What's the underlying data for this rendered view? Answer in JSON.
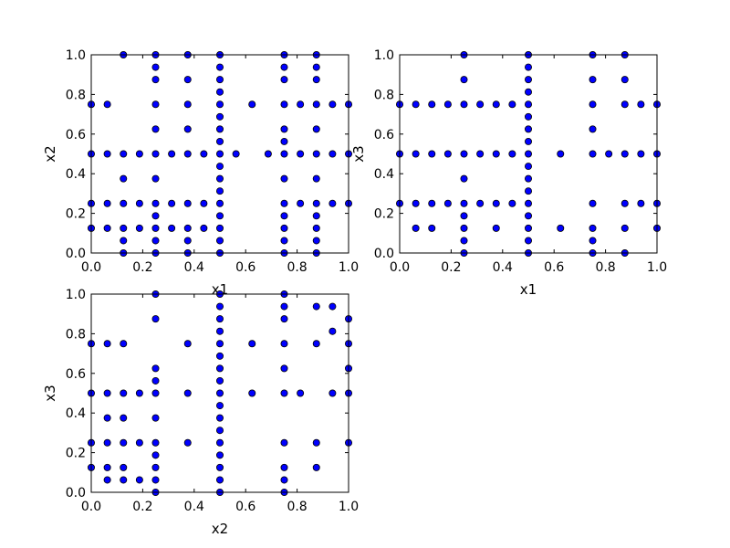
{
  "chart_data": [
    {
      "type": "scatter",
      "xlabel": "x1",
      "ylabel": "x2",
      "color": "#0000ff",
      "xlim": [
        0,
        1
      ],
      "ylim": [
        0,
        1
      ],
      "xticks": [
        {
          "value": 0,
          "label": "0.0"
        },
        {
          "value": 0.2,
          "label": "0.2"
        },
        {
          "value": 0.4,
          "label": "0.4"
        },
        {
          "value": 0.6,
          "label": "0.6"
        },
        {
          "value": 0.8,
          "label": "0.8"
        },
        {
          "value": 1,
          "label": "1.0"
        }
      ],
      "yticks": [
        {
          "value": 0,
          "label": "0.0"
        },
        {
          "value": 0.2,
          "label": "0.2"
        },
        {
          "value": 0.4,
          "label": "0.4"
        },
        {
          "value": 0.6,
          "label": "0.6"
        },
        {
          "value": 0.8,
          "label": "0.8"
        },
        {
          "value": 1,
          "label": "1.0"
        }
      ],
      "x": [
        0,
        0.0625,
        0.125,
        0.1875,
        0.25,
        0.3125,
        0.375,
        0.4375,
        0.5,
        0.5625,
        0.6875,
        0.75,
        0.8125,
        0.875,
        0.9375,
        1,
        0,
        0.0625,
        0.125,
        0.1875,
        0.25,
        0.3125,
        0.375,
        0.4375,
        0.5,
        0.75,
        0.8125,
        0.875,
        0.9375,
        1,
        0,
        0.0625,
        0.25,
        0.375,
        0.5,
        0.625,
        0.75,
        0.8125,
        0.875,
        0.9375,
        1,
        0,
        0.0625,
        0.125,
        0.1875,
        0.25,
        0.3125,
        0.375,
        0.4375,
        0.5,
        0.75,
        0.875,
        0.5,
        0.5,
        0.5,
        0.5,
        0.5,
        0.5,
        0.5,
        0.5,
        0.5,
        0.5,
        0.5,
        0.5,
        0.5,
        0.75,
        0.75,
        0.75,
        0.75,
        0.75,
        0.75,
        0.75,
        0.75,
        0.75,
        0.25,
        0.25,
        0.25,
        0.25,
        0.25,
        0.25,
        0.25,
        0.25,
        0.875,
        0.875,
        0.875,
        0.875,
        0.875,
        0.875,
        0.875,
        0.875,
        0.375,
        0.375,
        0.375,
        0.375,
        0.375,
        0.125,
        0.125,
        0.125,
        0.125
      ],
      "values": [
        0.5,
        0.5,
        0.5,
        0.5,
        0.5,
        0.5,
        0.5,
        0.5,
        0.5,
        0.5,
        0.5,
        0.5,
        0.5,
        0.5,
        0.5,
        0.5,
        0.25,
        0.25,
        0.25,
        0.25,
        0.25,
        0.25,
        0.25,
        0.25,
        0.25,
        0.25,
        0.25,
        0.25,
        0.25,
        0.25,
        0.75,
        0.75,
        0.75,
        0.75,
        0.75,
        0.75,
        0.75,
        0.75,
        0.75,
        0.75,
        0.75,
        0.125,
        0.125,
        0.125,
        0.125,
        0.125,
        0.125,
        0.125,
        0.125,
        0.125,
        0.125,
        0.125,
        0,
        0.0625,
        0.1875,
        0.3125,
        0.375,
        0.4375,
        0.5625,
        0.625,
        0.6875,
        0.8125,
        0.875,
        0.9375,
        1,
        0,
        0.0625,
        0.1875,
        0.375,
        0.5625,
        0.625,
        0.875,
        0.9375,
        1,
        0,
        0.0625,
        0.1875,
        0.375,
        0.625,
        0.875,
        0.9375,
        1,
        0,
        0.0625,
        0.1875,
        0.375,
        0.625,
        0.875,
        0.9375,
        1,
        0,
        0.0625,
        0.625,
        0.875,
        1,
        0,
        0.0625,
        0.375,
        1
      ]
    },
    {
      "type": "scatter",
      "xlabel": "x1",
      "ylabel": "x3",
      "color": "#0000ff",
      "xlim": [
        0,
        1
      ],
      "ylim": [
        0,
        1
      ],
      "xticks": [
        {
          "value": 0,
          "label": "0.0"
        },
        {
          "value": 0.2,
          "label": "0.2"
        },
        {
          "value": 0.4,
          "label": "0.4"
        },
        {
          "value": 0.6,
          "label": "0.6"
        },
        {
          "value": 0.8,
          "label": "0.8"
        },
        {
          "value": 1,
          "label": "1.0"
        }
      ],
      "yticks": [
        {
          "value": 0,
          "label": "0.0"
        },
        {
          "value": 0.2,
          "label": "0.2"
        },
        {
          "value": 0.4,
          "label": "0.4"
        },
        {
          "value": 0.6,
          "label": "0.6"
        },
        {
          "value": 0.8,
          "label": "0.8"
        },
        {
          "value": 1,
          "label": "1.0"
        }
      ],
      "x": [
        0.5,
        0.5,
        0.5,
        0.5,
        0.5,
        0.5,
        0.5,
        0.5,
        0.5,
        0.5,
        0.5,
        0.5,
        0.5,
        0.5,
        0.5,
        0.5,
        0.5,
        0.25,
        0.25,
        0.25,
        0.25,
        0.25,
        0.25,
        0.25,
        0.25,
        0.25,
        0.25,
        0.75,
        0.75,
        0.75,
        0.75,
        0.75,
        0.75,
        0.75,
        0.75,
        0.75,
        0.875,
        0.875,
        0.875,
        0.875,
        0.875,
        0.875,
        0.875,
        0,
        0.0625,
        0.125,
        0.1875,
        0.3125,
        0.375,
        0.4375,
        0.625,
        0.8125,
        0.9375,
        1,
        0,
        0.0625,
        0.125,
        0.1875,
        0.3125,
        0.375,
        0.4375,
        0.9375,
        1,
        0,
        0.0625,
        0.125,
        0.1875,
        0.3125,
        0.375,
        0.4375,
        0.9375,
        1,
        0.0625,
        0.125,
        0.375,
        0.625,
        1
      ],
      "values": [
        0,
        0.0625,
        0.125,
        0.1875,
        0.25,
        0.3125,
        0.375,
        0.4375,
        0.5,
        0.5625,
        0.625,
        0.6875,
        0.75,
        0.8125,
        0.875,
        0.9375,
        1,
        0,
        0.0625,
        0.125,
        0.1875,
        0.25,
        0.375,
        0.5,
        0.75,
        0.875,
        1,
        0,
        0.0625,
        0.125,
        0.25,
        0.5,
        0.625,
        0.75,
        0.875,
        1,
        0,
        0.125,
        0.25,
        0.5,
        0.75,
        0.875,
        1,
        0.5,
        0.5,
        0.5,
        0.5,
        0.5,
        0.5,
        0.5,
        0.5,
        0.5,
        0.5,
        0.5,
        0.25,
        0.25,
        0.25,
        0.25,
        0.25,
        0.25,
        0.25,
        0.25,
        0.25,
        0.75,
        0.75,
        0.75,
        0.75,
        0.75,
        0.75,
        0.75,
        0.75,
        0.75,
        0.125,
        0.125,
        0.125,
        0.125,
        0.125
      ]
    },
    {
      "type": "scatter",
      "xlabel": "x2",
      "ylabel": "x3",
      "color": "#0000ff",
      "xlim": [
        0,
        1
      ],
      "ylim": [
        0,
        1
      ],
      "xticks": [
        {
          "value": 0,
          "label": "0.0"
        },
        {
          "value": 0.2,
          "label": "0.2"
        },
        {
          "value": 0.4,
          "label": "0.4"
        },
        {
          "value": 0.6,
          "label": "0.6"
        },
        {
          "value": 0.8,
          "label": "0.8"
        },
        {
          "value": 1,
          "label": "1.0"
        }
      ],
      "yticks": [
        {
          "value": 0,
          "label": "0.0"
        },
        {
          "value": 0.2,
          "label": "0.2"
        },
        {
          "value": 0.4,
          "label": "0.4"
        },
        {
          "value": 0.6,
          "label": "0.6"
        },
        {
          "value": 0.8,
          "label": "0.8"
        },
        {
          "value": 1,
          "label": "1.0"
        }
      ],
      "x": [
        0.5,
        0.5,
        0.5,
        0.5,
        0.5,
        0.5,
        0.5,
        0.5,
        0.5,
        0.5,
        0.5,
        0.5,
        0.5,
        0.5,
        0.5,
        0.5,
        0.5,
        0.25,
        0.25,
        0.25,
        0.25,
        0.25,
        0.25,
        0.25,
        0.25,
        0.25,
        0.25,
        0.25,
        0.75,
        0.75,
        0.75,
        0.75,
        0.75,
        0.75,
        0.75,
        0.75,
        0.75,
        0.75,
        0,
        0.0625,
        0.125,
        0.1875,
        0.375,
        0.625,
        0.8125,
        0.9375,
        1,
        0,
        0.0625,
        0.125,
        0.1875,
        0.375,
        0.875,
        1,
        0,
        0.0625,
        0.125,
        0.375,
        0.625,
        0.875,
        1,
        0.0625,
        0.125,
        0.0625,
        0.125,
        0.1875,
        0,
        0.125,
        0.0625,
        0.9375,
        0.875,
        1,
        0.9375,
        1,
        0.875
      ],
      "values": [
        0,
        0.0625,
        0.125,
        0.1875,
        0.25,
        0.3125,
        0.375,
        0.4375,
        0.5,
        0.5625,
        0.625,
        0.6875,
        0.75,
        0.8125,
        0.875,
        0.9375,
        1,
        0,
        0.0625,
        0.125,
        0.1875,
        0.25,
        0.375,
        0.5,
        0.5625,
        0.625,
        0.875,
        1,
        0,
        0.0625,
        0.125,
        0.25,
        0.5,
        0.625,
        0.75,
        0.875,
        0.9375,
        1,
        0.5,
        0.5,
        0.5,
        0.5,
        0.5,
        0.5,
        0.5,
        0.5,
        0.5,
        0.25,
        0.25,
        0.25,
        0.25,
        0.25,
        0.25,
        0.25,
        0.75,
        0.75,
        0.75,
        0.75,
        0.75,
        0.75,
        0.75,
        0.0625,
        0.0625,
        0.125,
        0.125,
        0.0625,
        0.125,
        0.375,
        0.375,
        0.9375,
        0.9375,
        0.875,
        0.8125,
        0.625,
        0.125
      ]
    }
  ]
}
